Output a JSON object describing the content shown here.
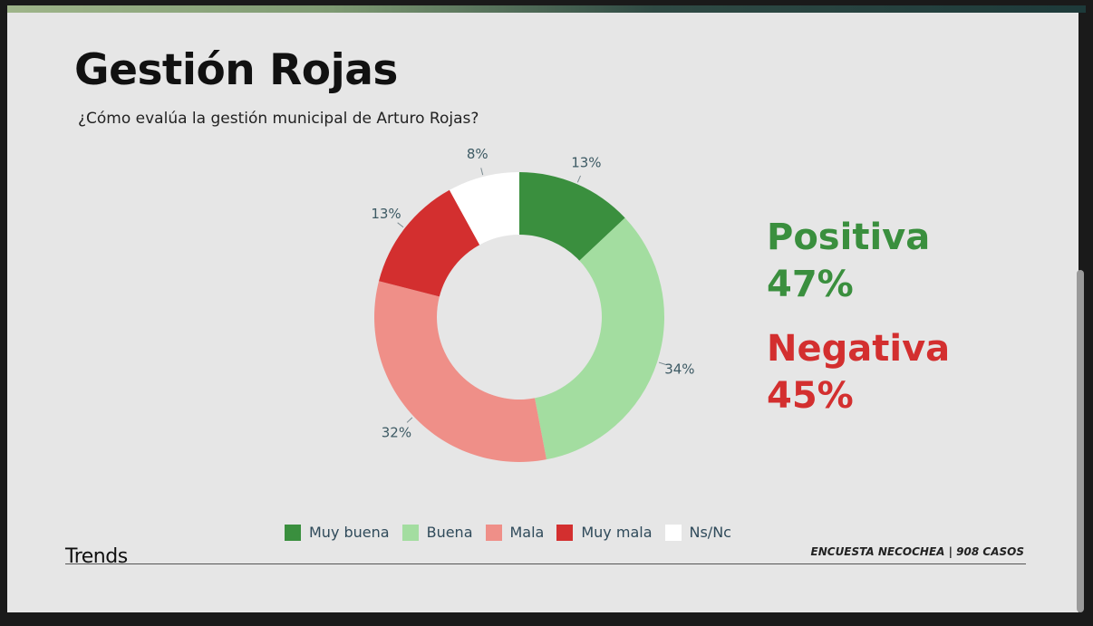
{
  "header": {
    "title": "Gestión Rojas",
    "subtitle": "¿Cómo evalúa la gestión municipal de Arturo Rojas?"
  },
  "summary": {
    "positive_label": "Positiva",
    "positive_value": "47%",
    "negative_label": "Negativa",
    "negative_value": "45%",
    "positive_color": "#3a8f3e",
    "negative_color": "#d32f2f"
  },
  "chart_data": {
    "type": "pie",
    "donut": true,
    "categories": [
      "Muy buena",
      "Buena",
      "Mala",
      "Muy mala",
      "Ns/Nc"
    ],
    "values": [
      13,
      34,
      32,
      13,
      8
    ],
    "labels": [
      "13%",
      "34%",
      "32%",
      "13%",
      "8%"
    ],
    "colors": [
      "#3a8f3e",
      "#a3dda0",
      "#ef8f88",
      "#d32f2f",
      "#ffffff"
    ],
    "legend_position": "bottom"
  },
  "footer": {
    "brand": "Trends",
    "note": "ENCUESTA NECOCHEA | 908 CASOS"
  }
}
